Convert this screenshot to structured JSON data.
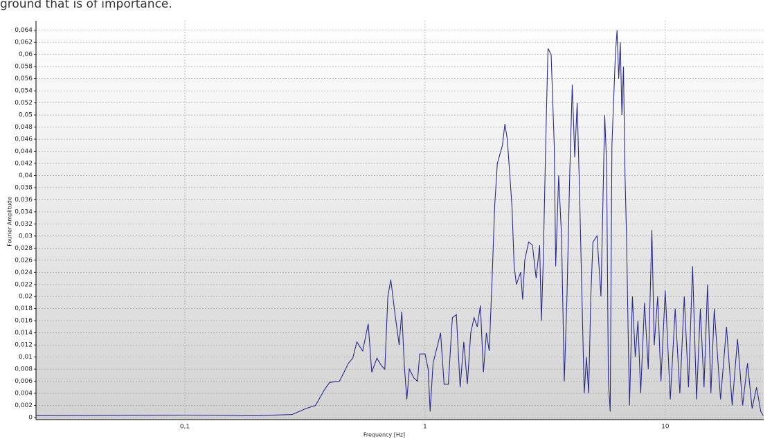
{
  "caption": "ground that is of importance.",
  "chart_data": {
    "type": "line",
    "xlabel": "Frequency [Hz]",
    "ylabel": "Fourier Amplitude",
    "xscale": "log",
    "grid": true,
    "color": "#2a2a8c",
    "xlim": [
      0.024,
      25.7
    ],
    "ylim": [
      0,
      0.065
    ],
    "xticks": [
      {
        "value": 0.1,
        "label": "0,1"
      },
      1,
      10
    ],
    "yticks": [
      0,
      {
        "value": 0.002,
        "label": "0,002"
      },
      {
        "value": 0.004,
        "label": "0,004"
      },
      {
        "value": 0.006,
        "label": "0,006"
      },
      {
        "value": 0.008,
        "label": "0,008"
      },
      {
        "value": 0.01,
        "label": "0,01"
      },
      {
        "value": 0.012,
        "label": "0,012"
      },
      {
        "value": 0.014,
        "label": "0,014"
      },
      {
        "value": 0.016,
        "label": "0,016"
      },
      {
        "value": 0.018,
        "label": "0,018"
      },
      {
        "value": 0.02,
        "label": "0,02"
      },
      {
        "value": 0.022,
        "label": "0,022"
      },
      {
        "value": 0.024,
        "label": "0,024"
      },
      {
        "value": 0.026,
        "label": "0,026"
      },
      {
        "value": 0.028,
        "label": "0,028"
      },
      {
        "value": 0.03,
        "label": "0,03"
      },
      {
        "value": 0.032,
        "label": "0,032"
      },
      {
        "value": 0.034,
        "label": "0,034"
      },
      {
        "value": 0.036,
        "label": "0,036"
      },
      {
        "value": 0.038,
        "label": "0,038"
      },
      {
        "value": 0.04,
        "label": "0,04"
      },
      {
        "value": 0.042,
        "label": "0,042"
      },
      {
        "value": 0.044,
        "label": "0,044"
      },
      {
        "value": 0.046,
        "label": "0,046"
      },
      {
        "value": 0.048,
        "label": "0,048"
      },
      {
        "value": 0.05,
        "label": "0,05"
      },
      {
        "value": 0.052,
        "label": "0,052"
      },
      {
        "value": 0.054,
        "label": "0,054"
      },
      {
        "value": 0.056,
        "label": "0,056"
      },
      {
        "value": 0.058,
        "label": "0,058"
      },
      {
        "value": 0.06,
        "label": "0,06"
      },
      {
        "value": 0.062,
        "label": "0,062"
      },
      {
        "value": 0.064,
        "label": "0,064"
      }
    ],
    "x": [
      0.024,
      0.1,
      0.2,
      0.28,
      0.32,
      0.35,
      0.38,
      0.4,
      0.44,
      0.46,
      0.48,
      0.5,
      0.52,
      0.55,
      0.58,
      0.6,
      0.63,
      0.66,
      0.68,
      0.7,
      0.72,
      0.75,
      0.78,
      0.8,
      0.82,
      0.84,
      0.86,
      0.9,
      0.93,
      0.95,
      1.0,
      1.03,
      1.05,
      1.08,
      1.12,
      1.16,
      1.2,
      1.25,
      1.3,
      1.35,
      1.4,
      1.45,
      1.5,
      1.55,
      1.6,
      1.65,
      1.7,
      1.75,
      1.8,
      1.85,
      1.9,
      1.95,
      2.0,
      2.1,
      2.15,
      2.2,
      2.3,
      2.35,
      2.4,
      2.5,
      2.55,
      2.6,
      2.7,
      2.8,
      2.9,
      3.0,
      3.05,
      3.1,
      3.2,
      3.25,
      3.35,
      3.45,
      3.5,
      3.6,
      3.7,
      3.8,
      3.9,
      4.0,
      4.1,
      4.2,
      4.3,
      4.4,
      4.5,
      4.6,
      4.7,
      4.8,
      4.9,
      5.0,
      5.2,
      5.4,
      5.6,
      5.7,
      5.8,
      5.9,
      6.0,
      6.2,
      6.3,
      6.4,
      6.5,
      6.6,
      6.7,
      6.8,
      6.9,
      7.0,
      7.1,
      7.3,
      7.5,
      7.7,
      7.9,
      8.2,
      8.5,
      8.8,
      9.0,
      9.3,
      9.6,
      10,
      10.5,
      11,
      11.5,
      12,
      12.5,
      13,
      13.5,
      14,
      14.5,
      15,
      15.5,
      16,
      17,
      18,
      19,
      20,
      21,
      22,
      23,
      24,
      25,
      25.6
    ],
    "values": [
      0.0003,
      0.0004,
      0.0003,
      0.0005,
      0.0015,
      0.002,
      0.0045,
      0.0058,
      0.006,
      0.0075,
      0.009,
      0.0098,
      0.0125,
      0.011,
      0.0155,
      0.0075,
      0.0098,
      0.0085,
      0.008,
      0.02,
      0.0228,
      0.017,
      0.012,
      0.0175,
      0.0085,
      0.003,
      0.008,
      0.0065,
      0.006,
      0.0105,
      0.0105,
      0.008,
      0.001,
      0.009,
      0.0115,
      0.014,
      0.0055,
      0.0055,
      0.0165,
      0.017,
      0.005,
      0.0125,
      0.0055,
      0.014,
      0.0165,
      0.015,
      0.0185,
      0.0075,
      0.014,
      0.011,
      0.0225,
      0.035,
      0.042,
      0.045,
      0.0485,
      0.046,
      0.035,
      0.025,
      0.022,
      0.024,
      0.0195,
      0.026,
      0.029,
      0.0285,
      0.023,
      0.0285,
      0.016,
      0.025,
      0.05,
      0.061,
      0.06,
      0.045,
      0.025,
      0.04,
      0.03,
      0.006,
      0.02,
      0.04,
      0.055,
      0.043,
      0.052,
      0.037,
      0.02,
      0.004,
      0.01,
      0.004,
      0.02,
      0.029,
      0.03,
      0.02,
      0.05,
      0.042,
      0.006,
      0.001,
      0.045,
      0.06,
      0.064,
      0.056,
      0.062,
      0.05,
      0.058,
      0.04,
      0.03,
      0.015,
      0.002,
      0.02,
      0.01,
      0.016,
      0.004,
      0.019,
      0.008,
      0.031,
      0.012,
      0.02,
      0.006,
      0.021,
      0.003,
      0.018,
      0.004,
      0.02,
      0.005,
      0.025,
      0.003,
      0.018,
      0.005,
      0.022,
      0.004,
      0.018,
      0.003,
      0.015,
      0.002,
      0.013,
      0.002,
      0.009,
      0.0015,
      0.005,
      0.001,
      0.0003
    ]
  }
}
